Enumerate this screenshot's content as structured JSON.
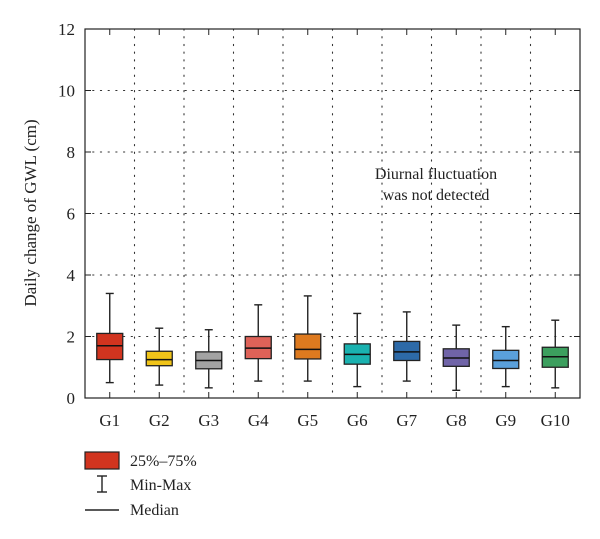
{
  "chart_data": {
    "type": "box",
    "ylabel": "Daily change of GWL (cm)",
    "xlabel": "",
    "ylim": [
      0,
      12
    ],
    "yticks": [
      0,
      2,
      4,
      6,
      8,
      10,
      12
    ],
    "grid": true,
    "categories": [
      "G1",
      "G2",
      "G3",
      "G4",
      "G5",
      "G6",
      "G7",
      "G8",
      "G9",
      "G10"
    ],
    "boxes": [
      {
        "min": 0.5,
        "q1": 1.25,
        "median": 1.7,
        "q3": 2.1,
        "max": 3.4,
        "color": "#d1341f"
      },
      {
        "min": 0.42,
        "q1": 1.05,
        "median": 1.25,
        "q3": 1.52,
        "max": 2.27,
        "color": "#f0c419"
      },
      {
        "min": 0.33,
        "q1": 0.95,
        "median": 1.22,
        "q3": 1.5,
        "max": 2.22,
        "color": "#a3a3a3"
      },
      {
        "min": 0.55,
        "q1": 1.28,
        "median": 1.62,
        "q3": 2.0,
        "max": 3.03,
        "color": "#de6258"
      },
      {
        "min": 0.55,
        "q1": 1.27,
        "median": 1.58,
        "q3": 2.08,
        "max": 3.32,
        "color": "#de7a1f"
      },
      {
        "min": 0.37,
        "q1": 1.1,
        "median": 1.42,
        "q3": 1.76,
        "max": 2.75,
        "color": "#1ab2b0"
      },
      {
        "min": 0.55,
        "q1": 1.22,
        "median": 1.5,
        "q3": 1.84,
        "max": 2.8,
        "color": "#2d6aa8"
      },
      {
        "min": 0.25,
        "q1": 1.03,
        "median": 1.3,
        "q3": 1.6,
        "max": 2.37,
        "color": "#7064a8"
      },
      {
        "min": 0.37,
        "q1": 0.96,
        "median": 1.22,
        "q3": 1.55,
        "max": 2.32,
        "color": "#5aa0db"
      },
      {
        "min": 0.33,
        "q1": 1.0,
        "median": 1.34,
        "q3": 1.65,
        "max": 2.53,
        "color": "#3c9f5e"
      }
    ],
    "annotation": [
      "Diurnal fluctuation",
      "was not detected"
    ],
    "legend": {
      "box_label": "25%–75%",
      "box_color": "#d1341f",
      "whisker_label": "Min-Max",
      "median_label": "Median"
    }
  }
}
